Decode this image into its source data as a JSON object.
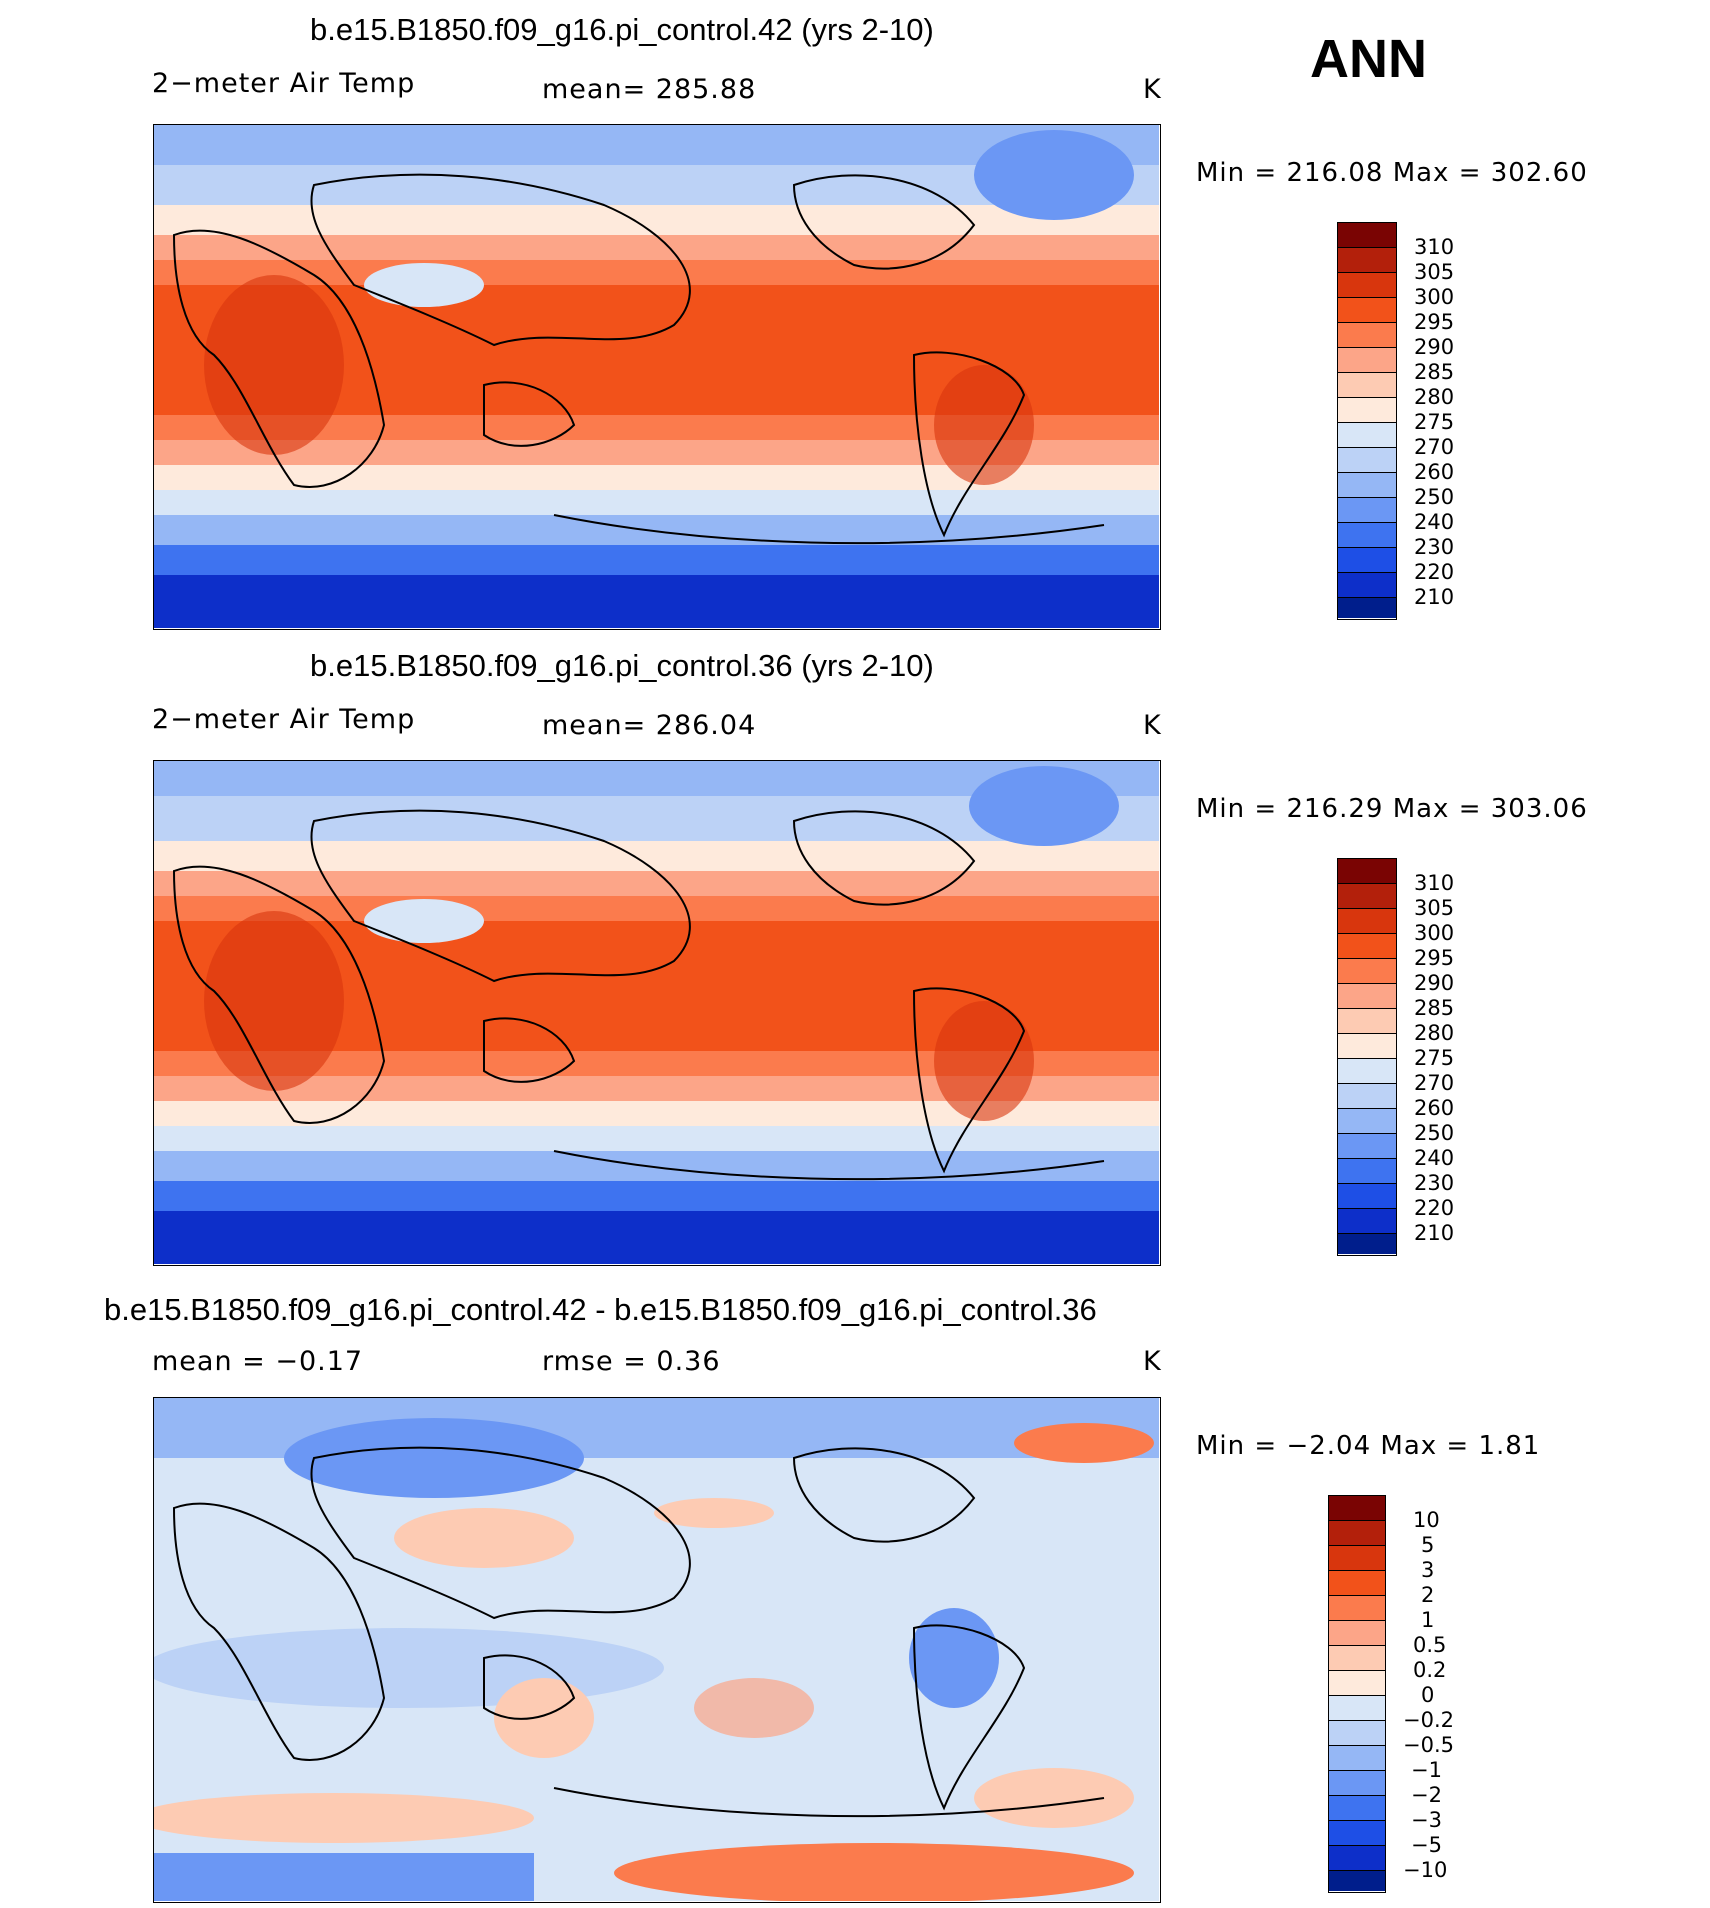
{
  "header": {
    "season": "ANN"
  },
  "panels": [
    {
      "title": "b.e15.B1850.f09_g16.pi_control.42 (yrs 2-10)",
      "left_label": "2−meter Air Temp",
      "center_label": "mean=  285.88",
      "units": "K",
      "minmax": "Min  =  216.08  Max  =  302.60",
      "colorbar": {
        "labels": [
          "310",
          "305",
          "300",
          "295",
          "290",
          "285",
          "280",
          "275",
          "270",
          "260",
          "250",
          "240",
          "230",
          "220",
          "210"
        ],
        "colors": [
          "#7a0403",
          "#b3200b",
          "#d8360d",
          "#f2521a",
          "#fb7b4d",
          "#fca588",
          "#fdcbb3",
          "#feeadc",
          "#d8e6f7",
          "#bcd2f6",
          "#95b7f5",
          "#6b97f4",
          "#3e73f0",
          "#1e4fe6",
          "#0d2fc9",
          "#001e8c"
        ]
      }
    },
    {
      "title": "b.e15.B1850.f09_g16.pi_control.36 (yrs 2-10)",
      "left_label": "2−meter Air Temp",
      "center_label": "mean=  286.04",
      "units": "K",
      "minmax": "Min  =  216.29  Max  =  303.06",
      "colorbar": {
        "labels": [
          "310",
          "305",
          "300",
          "295",
          "290",
          "285",
          "280",
          "275",
          "270",
          "260",
          "250",
          "240",
          "230",
          "220",
          "210"
        ],
        "colors": [
          "#7a0403",
          "#b3200b",
          "#d8360d",
          "#f2521a",
          "#fb7b4d",
          "#fca588",
          "#fdcbb3",
          "#feeadc",
          "#d8e6f7",
          "#bcd2f6",
          "#95b7f5",
          "#6b97f4",
          "#3e73f0",
          "#1e4fe6",
          "#0d2fc9",
          "#001e8c"
        ]
      }
    },
    {
      "title": "b.e15.B1850.f09_g16.pi_control.42 - b.e15.B1850.f09_g16.pi_control.36",
      "left_label": "mean  =    −0.17",
      "center_label": "rmse  =      0.36",
      "units": "K",
      "minmax": "Min  =     −2.04  Max  =      1.81",
      "colorbar": {
        "labels": [
          "10",
          "5",
          "3",
          "2",
          "1",
          "0.5",
          "0.2",
          "0",
          "−0.2",
          "−0.5",
          "−1",
          "−2",
          "−3",
          "−5",
          "−10"
        ],
        "colors": [
          "#7a0403",
          "#b3200b",
          "#d8360d",
          "#f2521a",
          "#fb7b4d",
          "#fca588",
          "#fdcbb3",
          "#feeadc",
          "#d8e6f7",
          "#bcd2f6",
          "#95b7f5",
          "#6b97f4",
          "#3e73f0",
          "#1e4fe6",
          "#0d2fc9",
          "#001e8c"
        ]
      }
    }
  ]
}
